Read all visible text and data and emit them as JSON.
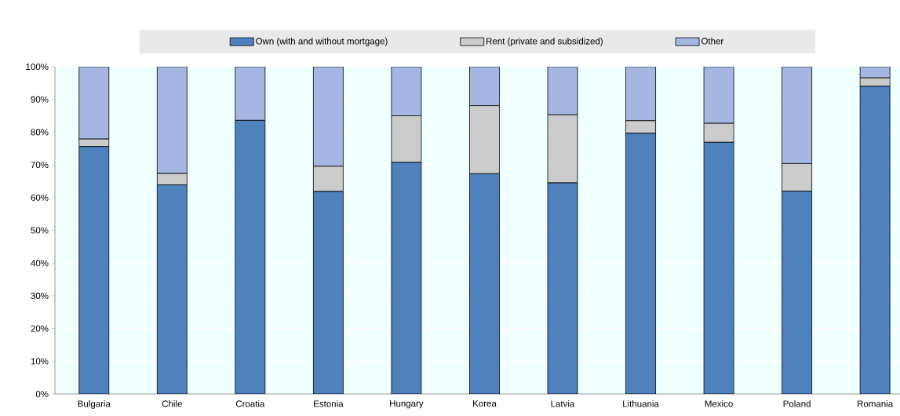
{
  "chart_data": {
    "type": "bar",
    "stacked": true,
    "categories": [
      "Bulgaria",
      "Chile",
      "Croatia",
      "Estonia",
      "Hungary",
      "Korea",
      "Latvia",
      "Lithuania",
      "Mexico",
      "Poland",
      "Romania"
    ],
    "series": [
      {
        "name": "Own (with and without mortgage)",
        "color": "#4f81bd",
        "values": [
          75.6,
          63.9,
          83.6,
          61.9,
          70.8,
          67.3,
          64.5,
          79.7,
          76.9,
          62.0,
          94.0
        ]
      },
      {
        "name": "Rent (private and subsidized)",
        "color": "#cccccc",
        "values": [
          2.3,
          3.5,
          0,
          7.7,
          14.2,
          20.8,
          20.8,
          3.8,
          5.8,
          8.4,
          2.6
        ]
      },
      {
        "name": "Other",
        "color": "#a7b7e3",
        "values": [
          22.1,
          32.6,
          16.4,
          30.4,
          15.0,
          11.9,
          14.7,
          16.5,
          17.3,
          29.6,
          3.4
        ]
      }
    ],
    "ylim": [
      0,
      100
    ],
    "yticks": [
      {
        "value": 0,
        "label": "0%"
      },
      {
        "value": 10,
        "label": "10%"
      },
      {
        "value": 20,
        "label": "20%"
      },
      {
        "value": 30,
        "label": "30%"
      },
      {
        "value": 40,
        "label": "40%"
      },
      {
        "value": 50,
        "label": "50%"
      },
      {
        "value": 60,
        "label": "60%"
      },
      {
        "value": 70,
        "label": "70%"
      },
      {
        "value": 80,
        "label": "80%"
      },
      {
        "value": 90,
        "label": "90%"
      },
      {
        "value": 100,
        "label": "100%"
      }
    ],
    "grid": "y",
    "legend": "top"
  }
}
